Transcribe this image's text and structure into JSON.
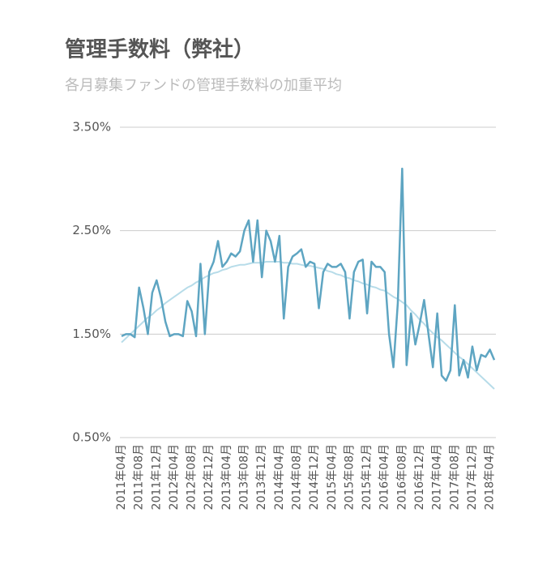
{
  "chart_data": {
    "type": "line",
    "title": "管理手数料（弊社）",
    "subtitle": "各月募集ファンドの管理手数料の加重平均",
    "categories": [
      "2011年04月",
      null,
      null,
      null,
      "2011年08月",
      null,
      null,
      null,
      "2011年12月",
      null,
      null,
      null,
      "2012年04月",
      null,
      null,
      null,
      "2012年08月",
      null,
      null,
      null,
      "2012年12月",
      null,
      null,
      null,
      "2013年04月",
      null,
      null,
      null,
      "2013年08月",
      null,
      null,
      null,
      "2013年12月",
      null,
      null,
      null,
      "2014年04月",
      null,
      null,
      null,
      "2014年08月",
      null,
      null,
      null,
      "2014年12月",
      null,
      null,
      null,
      "2015年04月",
      null,
      null,
      null,
      "2015年08月",
      null,
      null,
      null,
      "2015年12月",
      null,
      null,
      null,
      "2016年04月",
      null,
      null,
      null,
      "2016年08月",
      null,
      null,
      null,
      "2016年12月",
      null,
      null,
      null,
      "2017年04月",
      null,
      null,
      null,
      "2017年08月",
      null,
      null,
      null,
      "2017年12月",
      null,
      null,
      null,
      "2018年04月",
      null
    ],
    "series": [
      {
        "color": "#5ea5c2",
        "values": [
          1.48,
          1.5,
          1.5,
          1.47,
          1.95,
          1.75,
          1.5,
          1.9,
          2.02,
          1.85,
          1.62,
          1.48,
          1.5,
          1.5,
          1.48,
          1.82,
          1.72,
          1.48,
          2.18,
          1.5,
          2.1,
          2.2,
          2.4,
          2.15,
          2.2,
          2.28,
          2.25,
          2.3,
          2.5,
          2.6,
          2.2,
          2.6,
          2.05,
          2.5,
          2.4,
          2.2,
          2.45,
          1.65,
          2.15,
          2.25,
          2.28,
          2.32,
          2.15,
          2.2,
          2.18,
          1.75,
          2.1,
          2.18,
          2.15,
          2.15,
          2.18,
          2.1,
          1.65,
          2.1,
          2.2,
          2.22,
          1.7,
          2.2,
          2.15,
          2.15,
          2.1,
          1.5,
          1.18,
          1.8,
          3.1,
          1.2,
          1.7,
          1.4,
          1.6,
          1.83,
          1.5,
          1.18,
          1.7,
          1.1,
          1.05,
          1.15,
          1.78,
          1.1,
          1.25,
          1.08,
          1.38,
          1.15,
          1.3,
          1.28,
          1.35,
          1.25
        ]
      },
      {
        "color": "#b7dce9",
        "values": [
          1.42,
          1.46,
          1.5,
          1.54,
          1.58,
          1.62,
          1.66,
          1.69,
          1.73,
          1.76,
          1.8,
          1.83,
          1.86,
          1.89,
          1.92,
          1.95,
          1.97,
          2.0,
          2.02,
          2.05,
          2.07,
          2.09,
          2.1,
          2.12,
          2.13,
          2.15,
          2.16,
          2.17,
          2.17,
          2.18,
          2.19,
          2.19,
          2.19,
          2.2,
          2.2,
          2.2,
          2.2,
          2.19,
          2.19,
          2.18,
          2.18,
          2.17,
          2.16,
          2.16,
          2.15,
          2.14,
          2.13,
          2.11,
          2.1,
          2.08,
          2.07,
          2.05,
          2.04,
          2.02,
          2.01,
          1.99,
          1.98,
          1.96,
          1.95,
          1.93,
          1.92,
          1.89,
          1.86,
          1.84,
          1.81,
          1.78,
          1.73,
          1.69,
          1.64,
          1.6,
          1.55,
          1.51,
          1.47,
          1.44,
          1.4,
          1.36,
          1.32,
          1.28,
          1.25,
          1.21,
          1.17,
          1.13,
          1.09,
          1.05,
          1.01,
          0.97
        ]
      }
    ],
    "ylim": [
      0.5,
      3.5
    ],
    "yticks": [
      {
        "value": 0.5,
        "label": "0.50%"
      },
      {
        "value": 1.5,
        "label": "1.50%"
      },
      {
        "value": 2.5,
        "label": "2.50%"
      },
      {
        "value": 3.5,
        "label": "3.50%"
      }
    ],
    "grid": true
  }
}
